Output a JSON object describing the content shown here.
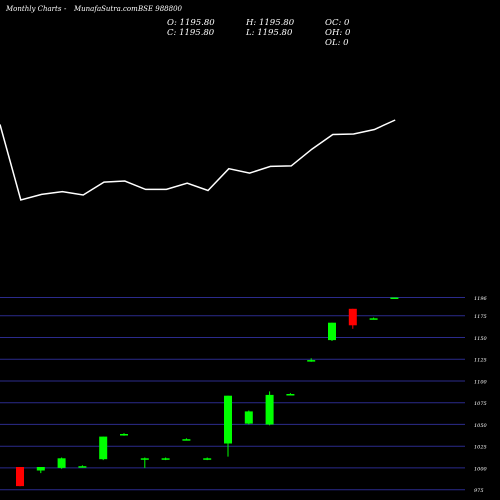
{
  "header": {
    "brand": "MunafaSutra.com",
    "title": "Monthly Charts",
    "separator": "-",
    "symbol": "BSE 988800"
  },
  "ohlc": {
    "open": "O: 1195.80",
    "high": "H: 1195.80",
    "close": "C: 1195.80",
    "low": "L: 1195.80",
    "oc": "OC: 0",
    "oh": "OH: 0",
    "ol": "OL: 0"
  },
  "colors": {
    "background": "#000000",
    "up": "#00ff00",
    "down": "#ff0000",
    "line": "#ffffff",
    "grid": "#2b2b8c",
    "text": "#ffffff"
  },
  "chart_data": [
    {
      "type": "line",
      "title": "",
      "values": [
        1187,
        1052,
        1062,
        1067,
        1061,
        1084,
        1086,
        1071,
        1071,
        1082,
        1069,
        1108,
        1100,
        1112,
        1113,
        1143,
        1169,
        1170,
        1178,
        1195
      ],
      "series": [
        {
          "name": "",
          "values": [
            1187,
            1052,
            1062,
            1067,
            1061,
            1084,
            1086,
            1071,
            1071,
            1082,
            1069,
            1108,
            1100,
            1112,
            1113,
            1143,
            1169,
            1170,
            1178,
            1195
          ]
        }
      ]
    },
    {
      "type": "candlestick",
      "title": "",
      "ylim": [
        970,
        1200
      ],
      "ytick_labels": [
        "1196",
        "1175",
        "1150",
        "1125",
        "1100",
        "1075",
        "1050",
        "1025",
        "1000",
        "975"
      ],
      "ytick_values": [
        1196,
        1175,
        1150,
        1125,
        1100,
        1075,
        1050,
        1025,
        1000,
        975
      ],
      "grid": true,
      "candles": [
        {
          "open": 1001,
          "high": 1001,
          "low": 979,
          "close": 979
        },
        {
          "open": 997,
          "high": 1001,
          "low": 994,
          "close": 1001
        },
        {
          "open": 1000,
          "high": 1012,
          "low": 999,
          "close": 1011
        },
        {
          "open": 1002,
          "high": 1003,
          "low": 1001,
          "close": 1002
        },
        {
          "open": 1010,
          "high": 1036,
          "low": 1009,
          "close": 1036
        },
        {
          "open": 1039,
          "high": 1040,
          "low": 1037,
          "close": 1039
        },
        {
          "open": 1011,
          "high": 1012,
          "low": 1000,
          "close": 1011
        },
        {
          "open": 1010,
          "high": 1012,
          "low": 1009,
          "close": 1011
        },
        {
          "open": 1033,
          "high": 1034,
          "low": 1032,
          "close": 1033
        },
        {
          "open": 1010,
          "high": 1012,
          "low": 1009,
          "close": 1011
        },
        {
          "open": 1028,
          "high": 1083,
          "low": 1013,
          "close": 1083
        },
        {
          "open": 1051,
          "high": 1066,
          "low": 1050,
          "close": 1065
        },
        {
          "open": 1050,
          "high": 1088,
          "low": 1049,
          "close": 1084
        },
        {
          "open": 1085,
          "high": 1086,
          "low": 1084,
          "close": 1085
        },
        {
          "open": 1124,
          "high": 1126,
          "low": 1122,
          "close": 1124
        },
        {
          "open": 1147,
          "high": 1167,
          "low": 1146,
          "close": 1167
        },
        {
          "open": 1183,
          "high": 1183,
          "low": 1160,
          "close": 1164
        },
        {
          "open": 1172,
          "high": 1173,
          "low": 1171,
          "close": 1172
        },
        {
          "open": 1196,
          "high": 1196,
          "low": 1195,
          "close": 1196
        }
      ]
    }
  ]
}
